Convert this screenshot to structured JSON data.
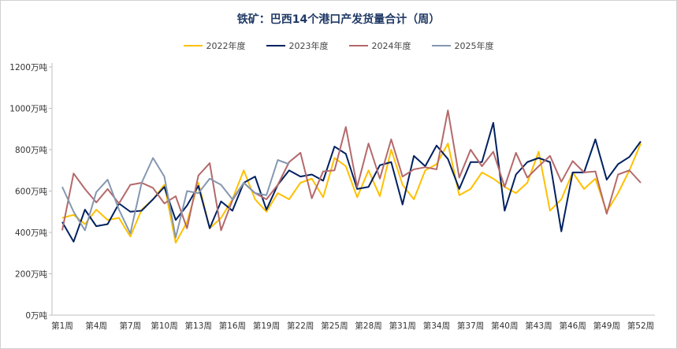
{
  "chart_data": {
    "type": "line",
    "title": "铁矿：巴西14个港口产发货量合计（周）",
    "ylim": [
      0,
      1200
    ],
    "yticks": [
      0,
      200,
      400,
      600,
      800,
      1000,
      1200
    ],
    "ytick_labels": [
      "0万吨",
      "200万吨",
      "400万吨",
      "600万吨",
      "800万吨",
      "1000万吨",
      "1200万吨"
    ],
    "x_tick_labels": [
      "第1周",
      "第4周",
      "第7周",
      "第10周",
      "第13周",
      "第16周",
      "第19周",
      "第22周",
      "第25周",
      "第28周",
      "第31周",
      "第34周",
      "第37周",
      "第40周",
      "第43周",
      "第46周",
      "第49周",
      "第52周"
    ],
    "x_tick_weeks": [
      1,
      4,
      7,
      10,
      13,
      16,
      19,
      22,
      25,
      28,
      31,
      34,
      37,
      40,
      43,
      46,
      49,
      52
    ],
    "grid": false,
    "legend_position": "top",
    "series": [
      {
        "name": "2022年度",
        "color": "#FFC000",
        "values": [
          470,
          485,
          440,
          510,
          460,
          470,
          380,
          510,
          560,
          630,
          350,
          450,
          640,
          420,
          470,
          560,
          700,
          560,
          500,
          590,
          560,
          640,
          660,
          570,
          760,
          720,
          570,
          700,
          575,
          800,
          630,
          560,
          700,
          730,
          830,
          580,
          610,
          690,
          660,
          620,
          590,
          640,
          790,
          505,
          560,
          690,
          610,
          660,
          500,
          590,
          700,
          830
        ]
      },
      {
        "name": "2023年度",
        "color": "#002060",
        "values": [
          450,
          355,
          510,
          430,
          440,
          540,
          500,
          505,
          560,
          620,
          460,
          530,
          625,
          420,
          550,
          505,
          640,
          670,
          510,
          630,
          700,
          670,
          680,
          650,
          815,
          780,
          610,
          620,
          725,
          740,
          535,
          770,
          720,
          820,
          755,
          610,
          740,
          740,
          930,
          505,
          680,
          740,
          760,
          740,
          405,
          690,
          690,
          850,
          655,
          730,
          765,
          840
        ]
      },
      {
        "name": "2024年度",
        "color": "#B4696B",
        "values": [
          410,
          685,
          610,
          545,
          610,
          540,
          630,
          640,
          615,
          540,
          575,
          420,
          675,
          735,
          410,
          555,
          640,
          590,
          560,
          630,
          740,
          785,
          565,
          695,
          700,
          910,
          620,
          830,
          660,
          850,
          670,
          705,
          715,
          705,
          990,
          665,
          800,
          720,
          790,
          620,
          785,
          665,
          720,
          770,
          645,
          745,
          690,
          695,
          490,
          680,
          700,
          640
        ]
      },
      {
        "name": "2025年度",
        "color": "#8497B0",
        "values": [
          620,
          500,
          410,
          595,
          655,
          510,
          395,
          640,
          760,
          670,
          375,
          600,
          590,
          660,
          630,
          560,
          640,
          590,
          580,
          750,
          730
        ]
      }
    ]
  }
}
